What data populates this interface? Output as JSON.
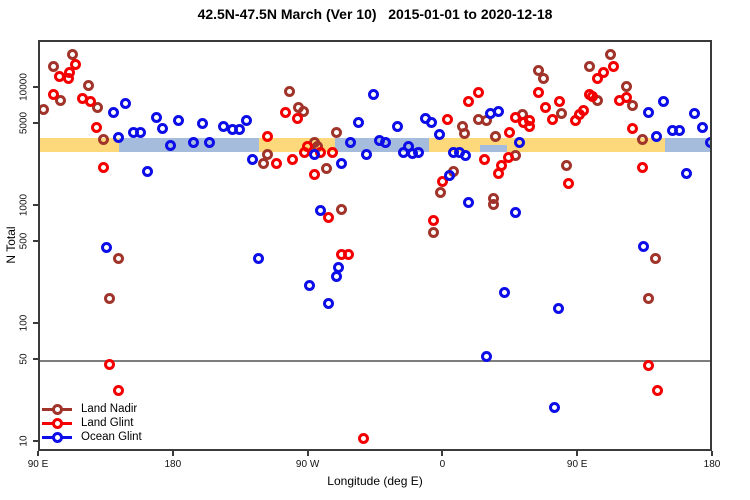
{
  "title": "42.5N-47.5N March (Ver 10)   2015-01-01 to 2020-12-18",
  "chart_data": {
    "type": "scatter",
    "title": "42.5N-47.5N March (Ver 10)   2015-01-01 to 2020-12-18",
    "xlabel": "Longitude (deg E)",
    "ylabel": "N Total",
    "y_scale": "log",
    "grid": false,
    "x_axis": {
      "range": [
        90,
        540
      ],
      "ticks": [
        90,
        180,
        270,
        360,
        450,
        540
      ],
      "labels": [
        "90 E",
        "180",
        "90 W",
        "0",
        "90 E",
        "180"
      ]
    },
    "y_axis": {
      "range": [
        8,
        25000
      ],
      "ticks": [
        10000,
        5000,
        1000,
        500,
        100,
        50,
        10
      ],
      "labels": [
        "10000",
        "5000",
        "1000",
        "500",
        "100",
        "50",
        "10"
      ]
    },
    "reference_line": {
      "y": 50,
      "color": "#7d7d7d"
    },
    "reference_band": {
      "y_range": [
        2950,
        3880
      ],
      "land_color": "#FED97C",
      "ocean_color": "#A6BCDD",
      "ocean_segments_lon": [
        [
          143,
          236
        ],
        [
          287,
          350
        ],
        [
          507,
          540
        ]
      ],
      "ocean_patch_lower_half_lon": [
        384,
        402
      ]
    },
    "legend": {
      "position": "bottom-left"
    },
    "series": [
      {
        "name": "Land Nadir",
        "color": "#A0342A",
        "points": [
          [
            112.0,
            19600
          ],
          [
            98.7,
            15800
          ],
          [
            122.7,
            10900
          ],
          [
            104.0,
            8000
          ],
          [
            128.1,
            7100
          ],
          [
            92.0,
            6800
          ],
          [
            132.7,
            3800
          ],
          [
            256.9,
            9520
          ],
          [
            262.3,
            7100
          ],
          [
            265.6,
            6570
          ],
          [
            287.7,
            4280
          ],
          [
            372.4,
            4810
          ],
          [
            373.1,
            4200
          ],
          [
            382.5,
            5620
          ],
          [
            387.8,
            5410
          ],
          [
            273.6,
            3580
          ],
          [
            275.6,
            3260
          ],
          [
            393.8,
            3960
          ],
          [
            422.5,
            14600
          ],
          [
            425.9,
            12300
          ],
          [
            471.2,
            19600
          ],
          [
            457.2,
            15800
          ],
          [
            481.3,
            10500
          ],
          [
            461.9,
            8000
          ],
          [
            485.9,
            7250
          ],
          [
            437.9,
            6200
          ],
          [
            411.9,
            6140
          ],
          [
            492.0,
            3800
          ],
          [
            242.2,
            2790
          ],
          [
            238.9,
            2340
          ],
          [
            281.6,
            2120
          ],
          [
            291.6,
            970
          ],
          [
            142.7,
            370
          ],
          [
            407.2,
            2740
          ],
          [
            366.4,
            2000
          ],
          [
            357.7,
            1330
          ],
          [
            392.5,
            1200
          ],
          [
            393.1,
            1070
          ],
          [
            352.4,
            610
          ],
          [
            441.2,
            2290
          ],
          [
            500.7,
            370
          ],
          [
            136.1,
            170
          ],
          [
            496.0,
            170
          ]
        ]
      },
      {
        "name": "Land Glint",
        "color": "#F40000",
        "points": [
          [
            113.4,
            16400
          ],
          [
            109.4,
            13800
          ],
          [
            102.7,
            12800
          ],
          [
            108.7,
            12300
          ],
          [
            98.7,
            9000
          ],
          [
            118.7,
            8310
          ],
          [
            123.4,
            7850
          ],
          [
            127.4,
            4720
          ],
          [
            241.6,
            3960
          ],
          [
            253.6,
            6320
          ],
          [
            261.6,
            5730
          ],
          [
            362.4,
            5620
          ],
          [
            375.8,
            7850
          ],
          [
            382.5,
            9340
          ],
          [
            268.3,
            3260
          ],
          [
            422.5,
            9340
          ],
          [
            472.6,
            15800
          ],
          [
            465.9,
            13800
          ],
          [
            462.5,
            12300
          ],
          [
            456.6,
            9150
          ],
          [
            459.2,
            8640
          ],
          [
            476.6,
            8000
          ],
          [
            481.9,
            8470
          ],
          [
            427.2,
            7100
          ],
          [
            436.6,
            7850
          ],
          [
            431.9,
            5620
          ],
          [
            407.2,
            5840
          ],
          [
            412.5,
            5300
          ],
          [
            416.5,
            5510
          ],
          [
            416.5,
            4810
          ],
          [
            447.2,
            5510
          ],
          [
            449.9,
            6140
          ],
          [
            452.6,
            6700
          ],
          [
            485.3,
            4670
          ],
          [
            403.2,
            4360
          ],
          [
            132.7,
            2200
          ],
          [
            248.2,
            2340
          ],
          [
            258.9,
            2530
          ],
          [
            266.9,
            2950
          ],
          [
            277.6,
            2900
          ],
          [
            285.6,
            2950
          ],
          [
            273.0,
            1920
          ],
          [
            282.3,
            830
          ],
          [
            291.6,
            400
          ],
          [
            296.3,
            400
          ],
          [
            386.5,
            2530
          ],
          [
            402.5,
            2630
          ],
          [
            397.8,
            2290
          ],
          [
            396.4,
            1950
          ],
          [
            358.4,
            1670
          ],
          [
            352.4,
            780
          ],
          [
            442.6,
            1610
          ],
          [
            492.0,
            2200
          ],
          [
            496.0,
            46
          ],
          [
            502.0,
            28
          ],
          [
            305.7,
            11
          ],
          [
            136.7,
            47
          ],
          [
            142.7,
            28
          ]
        ]
      },
      {
        "name": "Ocean Glint",
        "color": "#0D0DE8",
        "points": [
          [
            147.4,
            7680
          ],
          [
            139.4,
            6320
          ],
          [
            168.1,
            5840
          ],
          [
            182.8,
            5510
          ],
          [
            172.1,
            4630
          ],
          [
            152.1,
            4280
          ],
          [
            156.8,
            4280
          ],
          [
            142.7,
            3880
          ],
          [
            198.2,
            5100
          ],
          [
            212.2,
            4900
          ],
          [
            218.2,
            4540
          ],
          [
            223.5,
            4540
          ],
          [
            228.2,
            5510
          ],
          [
            176.8,
            3380
          ],
          [
            192.2,
            3520
          ],
          [
            203.5,
            3580
          ],
          [
            312.4,
            9150
          ],
          [
            302.4,
            5300
          ],
          [
            328.4,
            4810
          ],
          [
            347.1,
            5730
          ],
          [
            351.1,
            5200
          ],
          [
            356.4,
            4120
          ],
          [
            297.0,
            3580
          ],
          [
            317.0,
            3730
          ],
          [
            320.4,
            3520
          ],
          [
            335.7,
            3260
          ],
          [
            395.8,
            6450
          ],
          [
            390.5,
            6260
          ],
          [
            506.0,
            7850
          ],
          [
            496.6,
            6320
          ],
          [
            526.7,
            6260
          ],
          [
            532.0,
            4720
          ],
          [
            512.0,
            4450
          ],
          [
            516.7,
            4450
          ],
          [
            501.3,
            3960
          ],
          [
            409.9,
            3520
          ],
          [
            537.4,
            3520
          ],
          [
            162.1,
            2000
          ],
          [
            232.2,
            2530
          ],
          [
            273.6,
            2790
          ],
          [
            291.6,
            2380
          ],
          [
            307.7,
            2790
          ],
          [
            277.6,
            950
          ],
          [
            134.1,
            460
          ],
          [
            235.6,
            370
          ],
          [
            289.0,
            310
          ],
          [
            332.4,
            2900
          ],
          [
            338.4,
            2850
          ],
          [
            342.4,
            2900
          ],
          [
            366.4,
            2950
          ],
          [
            370.4,
            2900
          ],
          [
            373.8,
            2740
          ],
          [
            363.7,
            1880
          ],
          [
            375.8,
            1110
          ],
          [
            407.8,
            900
          ],
          [
            521.4,
            1950
          ],
          [
            492.7,
            470
          ],
          [
            269.6,
            220
          ],
          [
            287.7,
            260
          ],
          [
            282.3,
            155
          ],
          [
            399.8,
            190
          ],
          [
            435.9,
            140
          ],
          [
            387.8,
            55
          ],
          [
            433.2,
            20
          ]
        ]
      }
    ]
  }
}
